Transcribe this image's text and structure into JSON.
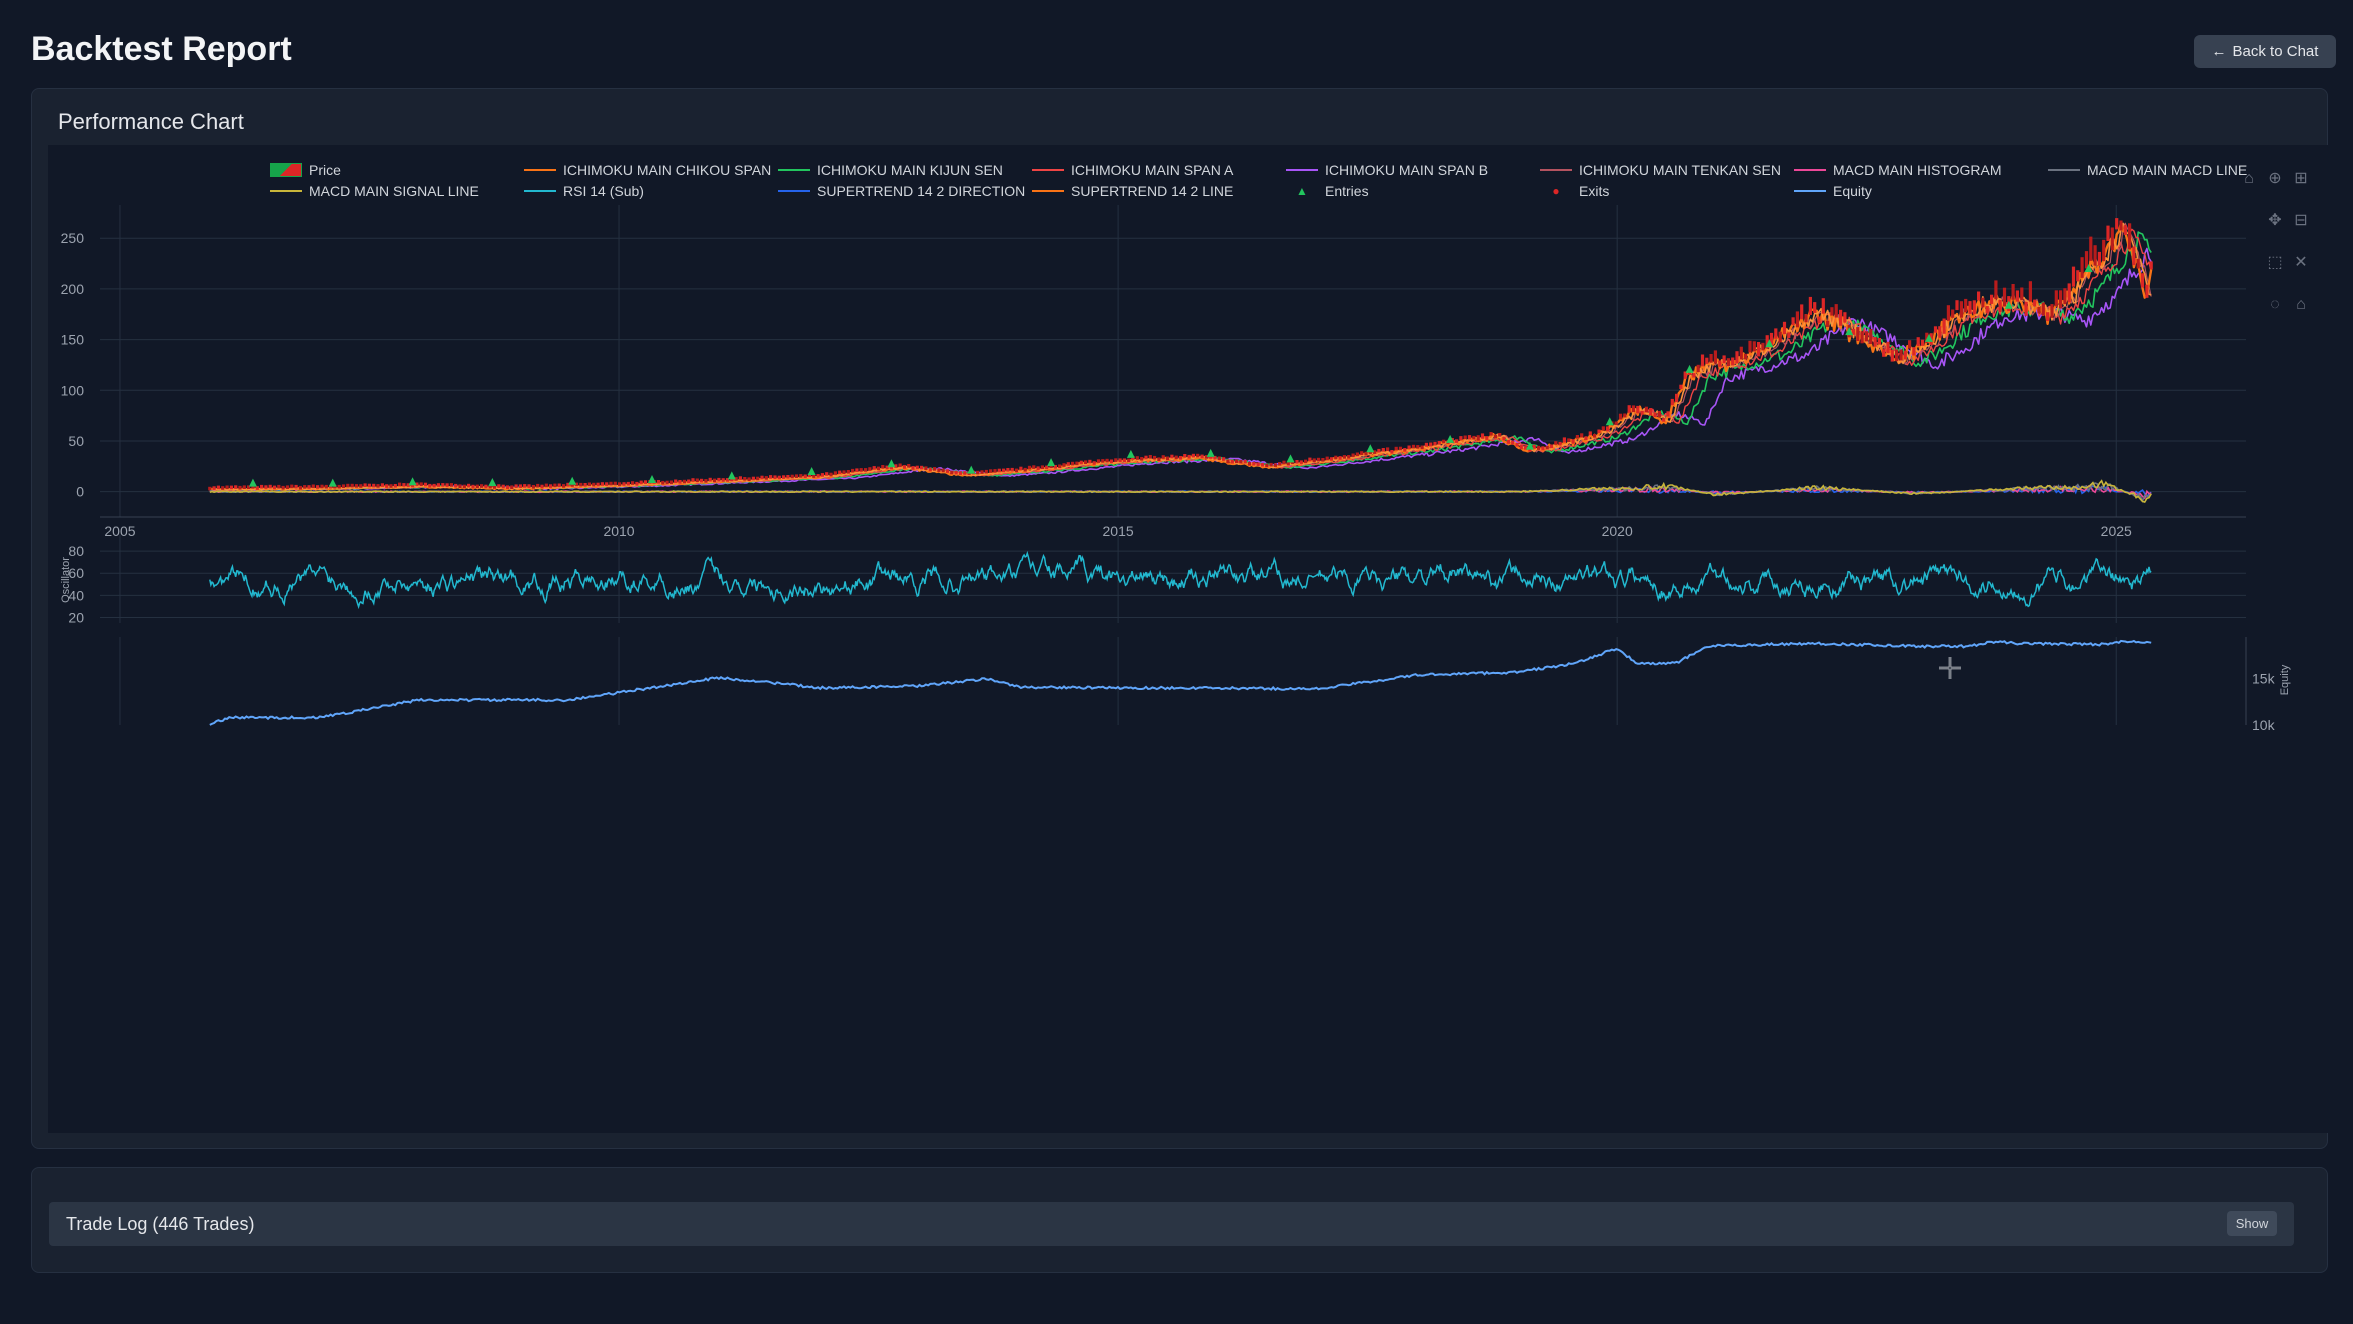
{
  "header": {
    "title": "Backtest Report",
    "back_label": "Back to Chat"
  },
  "chart_card": {
    "title": "Performance Chart"
  },
  "legend": {
    "items": [
      {
        "label": "Price",
        "color": "#16a34a"
      },
      {
        "label": "ICHIMOKU MAIN CHIKOU SPAN",
        "color": "#f97316"
      },
      {
        "label": "ICHIMOKU MAIN KIJUN SEN",
        "color": "#22c55e"
      },
      {
        "label": "ICHIMOKU MAIN SPAN A",
        "color": "#ef4444"
      },
      {
        "label": "ICHIMOKU MAIN SPAN B",
        "color": "#a855f7"
      },
      {
        "label": "ICHIMOKU MAIN TENKAN SEN",
        "color": "#b45360"
      },
      {
        "label": "MACD MAIN HISTOGRAM",
        "color": "#ec4899"
      },
      {
        "label": "MACD MAIN MACD LINE",
        "color": "#6b7280"
      },
      {
        "label": "MACD MAIN SIGNAL LINE",
        "color": "#c8b53a"
      },
      {
        "label": "RSI 14 (Sub)",
        "color": "#22b8cf"
      },
      {
        "label": "SUPERTREND 14 2 DIRECTION",
        "color": "#2563eb"
      },
      {
        "label": "SUPERTREND 14 2 LINE",
        "color": "#f97316"
      },
      {
        "label": "Entries",
        "color": "#22c55e"
      },
      {
        "label": "Exits",
        "color": "#dc2626"
      },
      {
        "label": "Equity",
        "color": "#60a5fa"
      }
    ]
  },
  "chart_data": [
    {
      "type": "line",
      "panel": "price",
      "x_ticks": [
        "2005",
        "2010",
        "2015",
        "2020",
        "2025"
      ],
      "y_ticks": [
        "250",
        "200",
        "150",
        "100",
        "50",
        "0"
      ],
      "ylim": [
        -25,
        268
      ],
      "xlim": [
        2004.8,
        2026.3
      ],
      "series": [
        {
          "name": "Price",
          "points": [
            [
              2005.9,
              2
            ],
            [
              2007,
              3
            ],
            [
              2008,
              5
            ],
            [
              2009,
              3
            ],
            [
              2010,
              6
            ],
            [
              2011,
              10
            ],
            [
              2012,
              14
            ],
            [
              2012.8,
              24
            ],
            [
              2013.5,
              16
            ],
            [
              2014,
              20
            ],
            [
              2015,
              30
            ],
            [
              2015.8,
              33
            ],
            [
              2016.5,
              24
            ],
            [
              2017,
              30
            ],
            [
              2018,
              42
            ],
            [
              2018.8,
              55
            ],
            [
              2019.1,
              39
            ],
            [
              2019.8,
              55
            ],
            [
              2020.2,
              80
            ],
            [
              2020.5,
              70
            ],
            [
              2020.7,
              115
            ],
            [
              2021,
              125
            ],
            [
              2021.5,
              140
            ],
            [
              2022,
              175
            ],
            [
              2022.5,
              150
            ],
            [
              2022.8,
              130
            ],
            [
              2023,
              140
            ],
            [
              2023.5,
              180
            ],
            [
              2024,
              185
            ],
            [
              2024.3,
              175
            ],
            [
              2024.6,
              200
            ],
            [
              2025,
              255
            ],
            [
              2025.2,
              230
            ],
            [
              2025.3,
              185
            ],
            [
              2025.35,
              215
            ]
          ]
        },
        {
          "name": "MACD MAIN SIGNAL LINE",
          "points": [
            [
              2005.9,
              0
            ],
            [
              2019,
              0
            ],
            [
              2020.5,
              5
            ],
            [
              2021,
              -3
            ],
            [
              2022,
              4
            ],
            [
              2023,
              -2
            ],
            [
              2024,
              3
            ],
            [
              2024.9,
              7
            ],
            [
              2025.3,
              -8
            ],
            [
              2025.35,
              -2
            ]
          ]
        }
      ]
    },
    {
      "type": "line",
      "panel": "oscillator",
      "ylabel": "Oscillator",
      "y_ticks": [
        "80",
        "60",
        "40",
        "20"
      ],
      "ylim": [
        15,
        90
      ],
      "series": [
        {
          "name": "RSI 14 (Sub)",
          "range": [
            20,
            88
          ]
        }
      ]
    },
    {
      "type": "line",
      "panel": "equity",
      "ylabel": "Equity",
      "y_ticks": [
        "15k",
        "10k"
      ],
      "ylim": [
        10000,
        19500
      ],
      "series": [
        {
          "name": "Equity",
          "points": [
            [
              2005.9,
              10100
            ],
            [
              2006.1,
              10800
            ],
            [
              2007,
              10800
            ],
            [
              2008,
              12700
            ],
            [
              2009.5,
              12700
            ],
            [
              2010,
              13500
            ],
            [
              2011,
              15100
            ],
            [
              2011.6,
              14500
            ],
            [
              2012,
              14000
            ],
            [
              2013,
              14200
            ],
            [
              2013.7,
              15000
            ],
            [
              2014,
              14100
            ],
            [
              2015,
              14000
            ],
            [
              2015.6,
              14000
            ],
            [
              2017,
              13900
            ],
            [
              2018,
              15400
            ],
            [
              2019,
              15700
            ],
            [
              2019.6,
              16700
            ],
            [
              2020,
              18300
            ],
            [
              2020.2,
              16600
            ],
            [
              2020.6,
              16700
            ],
            [
              2020.9,
              18500
            ],
            [
              2021.5,
              18700
            ],
            [
              2022,
              18800
            ],
            [
              2023,
              18500
            ],
            [
              2023.5,
              18500
            ],
            [
              2023.8,
              19000
            ],
            [
              2024,
              18800
            ],
            [
              2024.9,
              18700
            ],
            [
              2025,
              19000
            ],
            [
              2025.35,
              18900
            ]
          ]
        }
      ]
    }
  ],
  "trade_log": {
    "title": "Trade Log (446 Trades)",
    "show_label": "Show"
  }
}
